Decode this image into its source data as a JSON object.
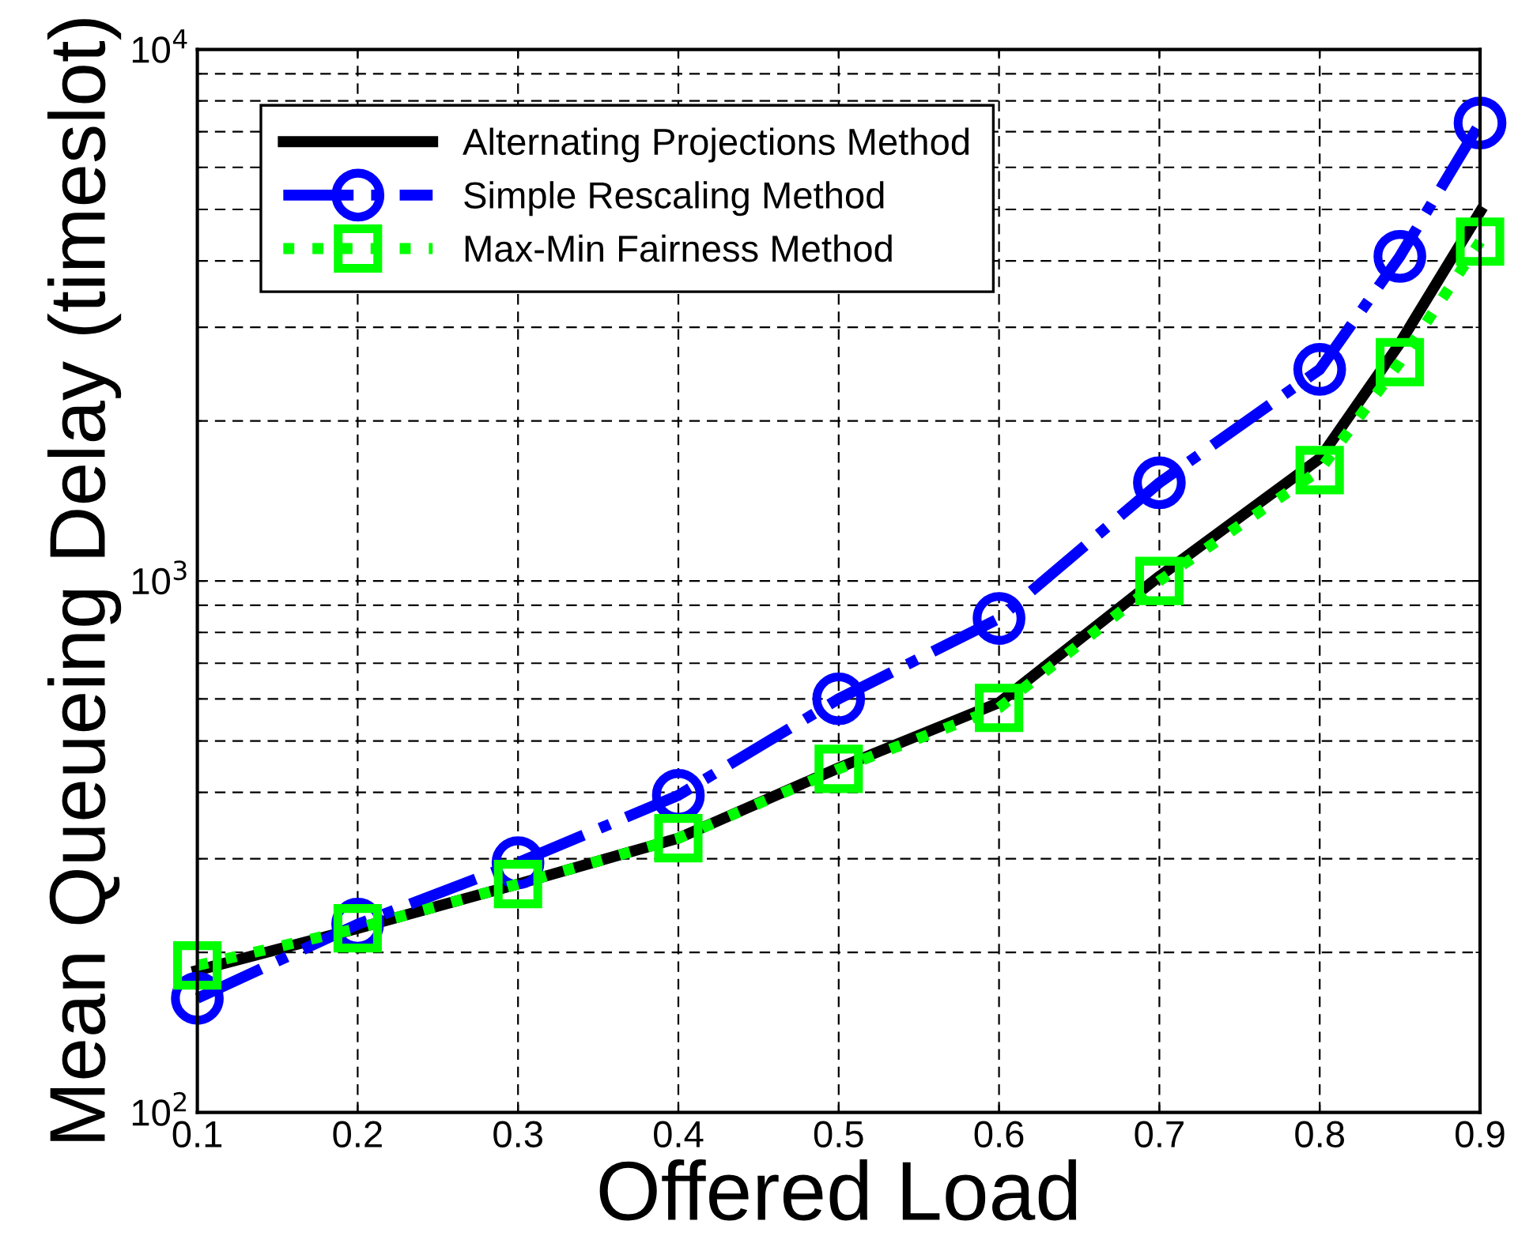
{
  "chart_data": {
    "type": "line",
    "xlabel": "Offered Load",
    "ylabel": "Mean Queueing Delay (timeslot)",
    "x": [
      0.1,
      0.2,
      0.3,
      0.4,
      0.5,
      0.6,
      0.7,
      0.8,
      0.85,
      0.9
    ],
    "series": [
      {
        "name": "Alternating Projections Method",
        "color": "#000000",
        "line_style": "solid",
        "marker": "none",
        "values": [
          185,
          222,
          269,
          328,
          445,
          590,
          1020,
          1700,
          2800,
          4950
        ]
      },
      {
        "name": "Simple Rescaling Method",
        "color": "#0000ff",
        "line_style": "dashdot",
        "marker": "circle",
        "values": [
          164,
          226,
          295,
          395,
          600,
          850,
          1530,
          2500,
          4080,
          7270
        ]
      },
      {
        "name": "Max-Min Fairness Method",
        "color": "#00ff00",
        "line_style": "dotted",
        "marker": "square",
        "values": [
          189,
          222,
          269,
          328,
          443,
          577,
          1000,
          1616,
          2580,
          4350
        ]
      }
    ],
    "log": "y",
    "xlim": [
      0.1,
      0.9
    ],
    "xticks": [
      0.1,
      0.2,
      0.3,
      0.4,
      0.5,
      0.6,
      0.7,
      0.8,
      0.9
    ],
    "ylim": [
      100,
      10000
    ],
    "yticks": [
      {
        "value": 100,
        "label": "10$^{2}$"
      },
      {
        "value": 1000,
        "label": "10$^{3}$"
      },
      {
        "value": 10000,
        "label": "10$^{4}$"
      }
    ],
    "grid": true,
    "legend": "top left"
  }
}
